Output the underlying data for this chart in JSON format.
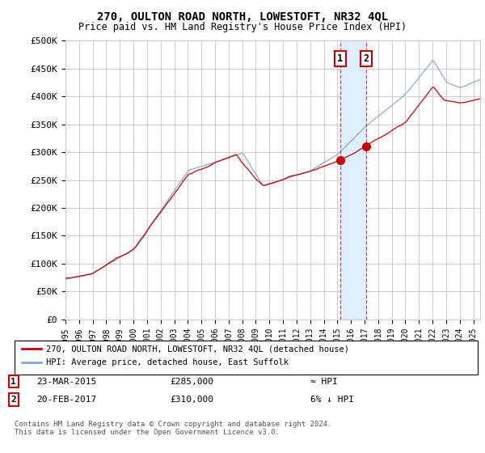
{
  "title": "270, OULTON ROAD NORTH, LOWESTOFT, NR32 4QL",
  "subtitle": "Price paid vs. HM Land Registry's House Price Index (HPI)",
  "ylabel_ticks": [
    "£0",
    "£50K",
    "£100K",
    "£150K",
    "£200K",
    "£250K",
    "£300K",
    "£350K",
    "£400K",
    "£450K",
    "£500K"
  ],
  "ytick_values": [
    0,
    50000,
    100000,
    150000,
    200000,
    250000,
    300000,
    350000,
    400000,
    450000,
    500000
  ],
  "xlim_start": 1995.0,
  "xlim_end": 2025.5,
  "ylim": [
    0,
    500000
  ],
  "sale1_date": 2015.2,
  "sale1_price": 285000,
  "sale2_date": 2017.1,
  "sale2_price": 310000,
  "legend_line1": "270, OULTON ROAD NORTH, LOWESTOFT, NR32 4QL (detached house)",
  "legend_line2": "HPI: Average price, detached house, East Suffolk",
  "footnote": "Contains HM Land Registry data © Crown copyright and database right 2024.\nThis data is licensed under the Open Government Licence v3.0.",
  "red_color": "#cc0000",
  "blue_color": "#88aacc",
  "grid_color": "#cccccc",
  "background_color": "#ffffff",
  "shaded_region_color": "#ddeeff",
  "title_fontsize": 10,
  "subtitle_fontsize": 9
}
